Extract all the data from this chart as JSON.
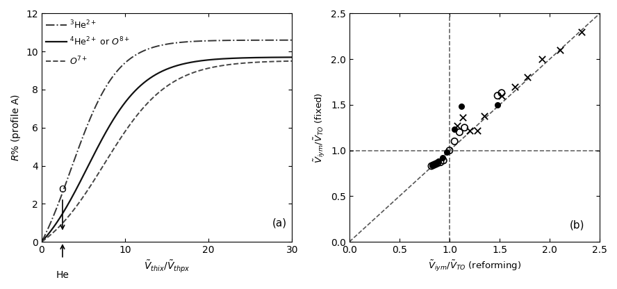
{
  "panel_a": {
    "xlim": [
      0,
      30
    ],
    "ylim": [
      0,
      12
    ],
    "xticks": [
      0,
      10,
      20,
      30
    ],
    "yticks": [
      0,
      2,
      4,
      6,
      8,
      10,
      12
    ],
    "xlabel": "$\\tilde{V}_{thix}/\\tilde{V}_{thpx}$",
    "ylabel": "$R$% (profile A)",
    "label": "(a)"
  },
  "panel_b": {
    "xlim": [
      0,
      2.5
    ],
    "ylim": [
      0,
      2.5
    ],
    "xticks": [
      0,
      0.5,
      1.0,
      1.5,
      2.0,
      2.5
    ],
    "yticks": [
      0,
      0.5,
      1.0,
      1.5,
      2.0,
      2.5
    ],
    "xlabel": "$\\tilde{V}_{iym}/\\tilde{V}_{TO}$ (reforming)",
    "ylabel": "$\\tilde{V}_{iym}/\\tilde{V}_{TO}$ (fixed)",
    "label": "(b)",
    "open_circles_x": [
      0.82,
      0.84,
      0.86,
      0.88,
      0.91,
      0.94,
      1.0,
      1.05,
      1.1,
      1.15,
      1.48,
      1.52
    ],
    "open_circles_y": [
      0.83,
      0.84,
      0.85,
      0.86,
      0.87,
      0.89,
      1.0,
      1.1,
      1.2,
      1.25,
      1.6,
      1.63
    ],
    "filled_circles_x": [
      0.83,
      0.86,
      0.89,
      0.93,
      0.97,
      1.05,
      1.12,
      1.48
    ],
    "filled_circles_y": [
      0.84,
      0.86,
      0.88,
      0.92,
      0.98,
      1.23,
      1.48,
      1.5
    ],
    "crosses_x": [
      1.08,
      1.13,
      1.2,
      1.28,
      1.35,
      1.52,
      1.65,
      1.78,
      1.92,
      2.1,
      2.32
    ],
    "crosses_y": [
      1.27,
      1.36,
      1.22,
      1.22,
      1.38,
      1.6,
      1.7,
      1.8,
      2.0,
      2.1,
      2.3
    ]
  }
}
